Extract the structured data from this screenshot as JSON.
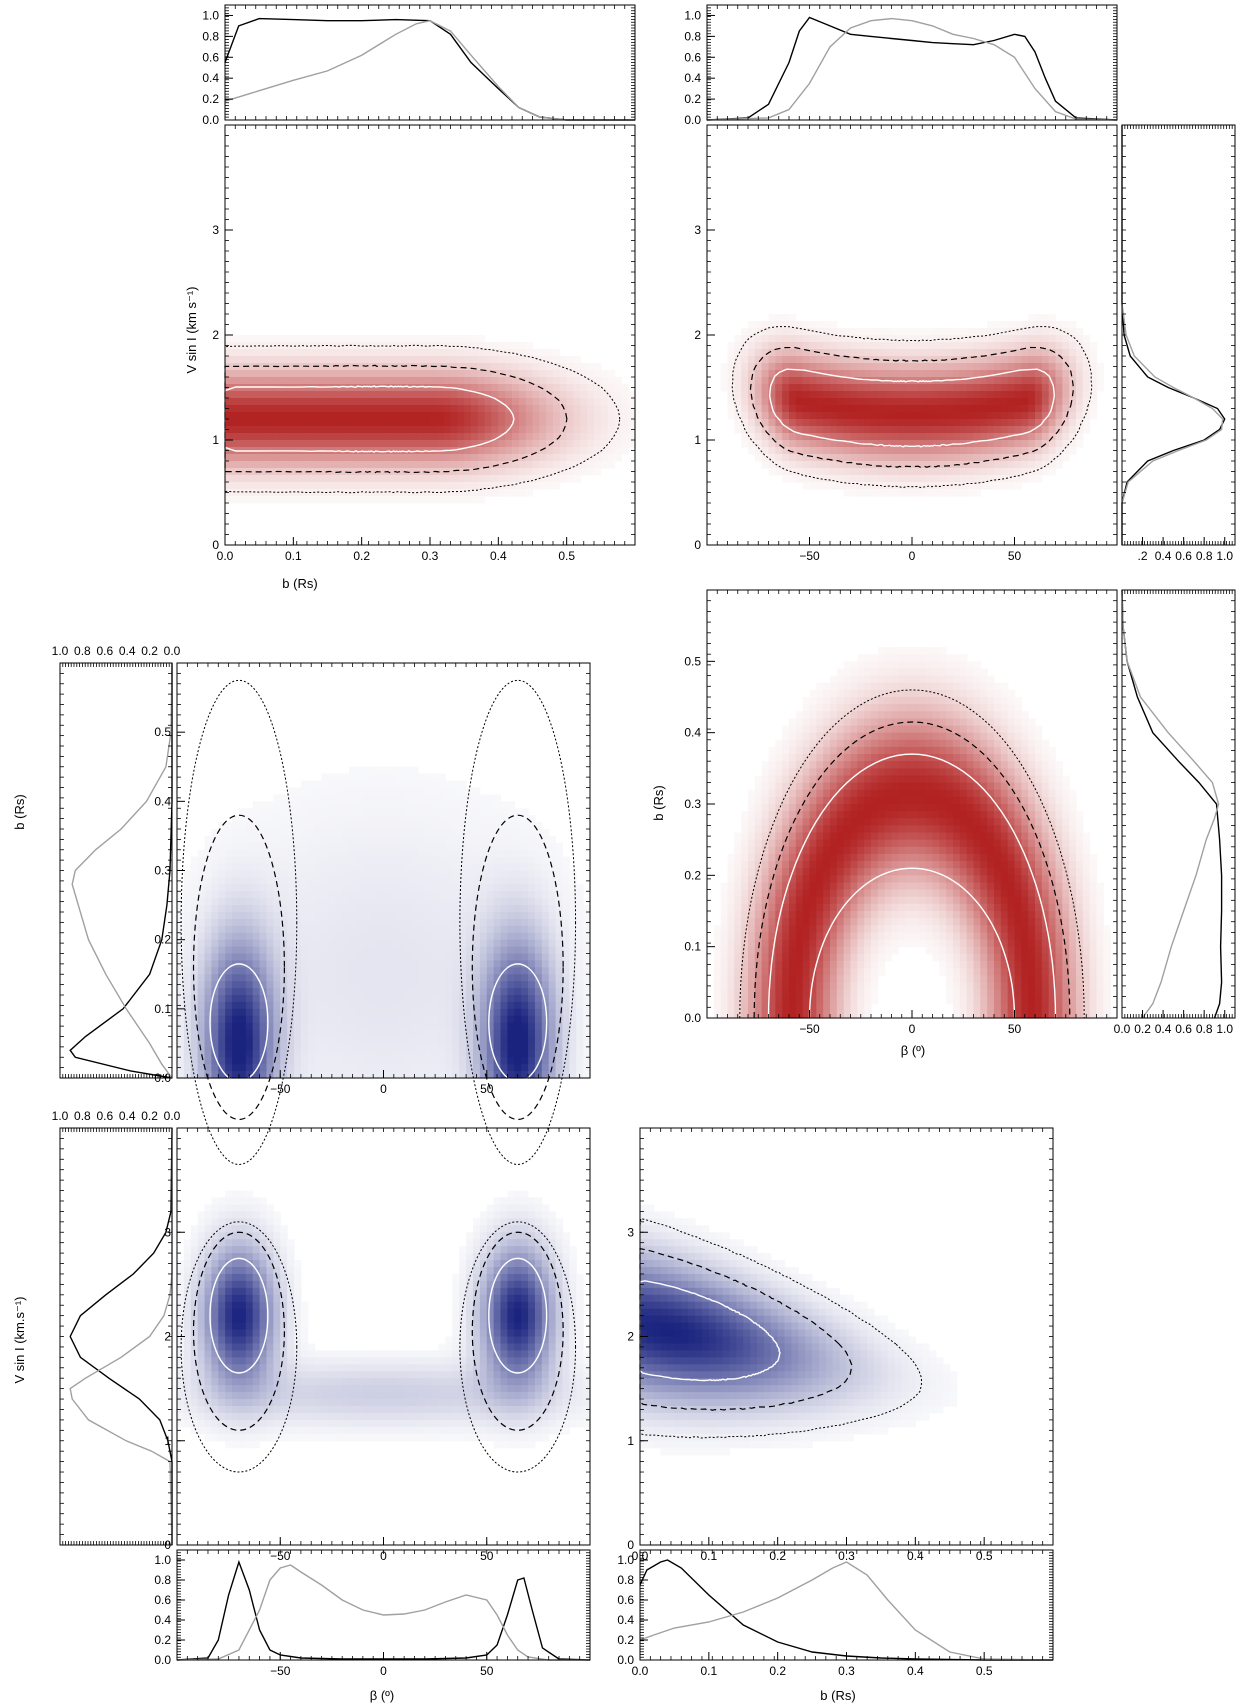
{
  "colors": {
    "red": "#b22222",
    "blue": "#1a237e",
    "hist_primary": "#000000",
    "hist_secondary": "#a0a0a0",
    "contour_inner": "#ffffff",
    "contour_mid": "#000000",
    "contour_outer": "#000000"
  },
  "labels": {
    "b_rs": "b (Rs)",
    "beta": "β (º)",
    "vsini_1": "V sin I (km s⁻¹)",
    "vsini_2": "V sin I (km.s⁻¹)"
  },
  "chart_data": [
    {
      "id": "p1",
      "type": "heatmap",
      "color": "red",
      "xlabel": "b (Rs)",
      "ylabel": "V sin I (km s⁻¹)",
      "xlim": [
        0,
        0.6
      ],
      "ylim": [
        0,
        4
      ],
      "xticks": [
        "0.0",
        "0.1",
        "0.2",
        "0.3",
        "0.4",
        "0.5"
      ],
      "yticks": [
        "0",
        "1",
        "2",
        "3"
      ],
      "density": {
        "shape": "band",
        "x_range": [
          0,
          0.4
        ],
        "y_center": 1.2,
        "y_halfwidth": 0.3
      }
    },
    {
      "id": "p2",
      "type": "heatmap",
      "color": "red",
      "xlabel": "",
      "ylabel": "",
      "xlim": [
        -100,
        100
      ],
      "ylim": [
        0,
        4
      ],
      "xticks": [
        "−50",
        "0",
        "50"
      ],
      "yticks": [
        "0",
        "1",
        "2",
        "3"
      ],
      "density": {
        "shape": "smile",
        "x_range": [
          -70,
          70
        ],
        "y_center": 1.25,
        "y_halfwidth": 0.3
      }
    },
    {
      "id": "p3",
      "type": "heatmap",
      "color": "blue",
      "xlabel": "",
      "ylabel": "b (Rs)",
      "xlim": [
        -100,
        100
      ],
      "ylim": [
        0,
        0.6
      ],
      "xticks": [
        "−50",
        "0",
        "50"
      ],
      "yticks": [
        "0.0",
        "0.1",
        "0.2",
        "0.3",
        "0.4",
        "0.5"
      ],
      "density": {
        "shape": "twin-peaks",
        "peaks_x": [
          -70,
          65
        ],
        "peak_y": 0.05
      }
    },
    {
      "id": "p4",
      "type": "heatmap",
      "color": "red",
      "xlabel": "β (º)",
      "ylabel": "b (Rs)",
      "xlim": [
        -100,
        100
      ],
      "ylim": [
        0,
        0.6
      ],
      "xticks": [
        "−50",
        "0",
        "50"
      ],
      "yticks": [
        "0.0",
        "0.1",
        "0.2",
        "0.3",
        "0.4",
        "0.5"
      ],
      "density": {
        "shape": "arch",
        "x_range": [
          -70,
          70
        ],
        "top_y": 0.37
      }
    },
    {
      "id": "p5",
      "type": "heatmap",
      "color": "blue",
      "xlabel": "",
      "ylabel": "V sin I (km.s⁻¹)",
      "xlim": [
        -100,
        100
      ],
      "ylim": [
        0,
        4
      ],
      "xticks": [
        "−50",
        "0",
        "50"
      ],
      "yticks": [
        "0",
        "1",
        "2",
        "3"
      ],
      "density": {
        "shape": "u-peaks",
        "peaks_x": [
          -70,
          65
        ],
        "peak_y": 2.2
      }
    },
    {
      "id": "p6",
      "type": "heatmap",
      "color": "blue",
      "xlabel": "",
      "ylabel": "",
      "xlim": [
        0,
        0.6
      ],
      "ylim": [
        0,
        4
      ],
      "xticks": [
        "0.0",
        "0.1",
        "0.2",
        "0.3",
        "0.4",
        "0.5"
      ],
      "yticks": [
        "0",
        "1",
        "2",
        "3"
      ],
      "density": {
        "shape": "wedge",
        "peak": [
          0.04,
          2.1
        ]
      }
    },
    {
      "id": "h_top_b",
      "type": "line",
      "orientation": "top",
      "xlim": [
        0,
        0.6
      ],
      "ylim": [
        0,
        1.1
      ],
      "yticks": [
        "0.0",
        "0.2",
        "0.4",
        "0.6",
        "0.8",
        "1.0"
      ],
      "series": [
        {
          "style": "primary",
          "x": [
            0,
            0.02,
            0.05,
            0.1,
            0.15,
            0.2,
            0.25,
            0.3,
            0.33,
            0.36,
            0.4,
            0.43,
            0.46,
            0.5,
            0.6
          ],
          "y": [
            0.55,
            0.9,
            0.97,
            0.96,
            0.95,
            0.95,
            0.96,
            0.95,
            0.82,
            0.55,
            0.3,
            0.12,
            0.03,
            0.0,
            0.0
          ]
        },
        {
          "style": "secondary",
          "x": [
            0,
            0.05,
            0.1,
            0.15,
            0.2,
            0.25,
            0.28,
            0.3,
            0.33,
            0.36,
            0.4,
            0.43,
            0.46,
            0.5,
            0.6
          ],
          "y": [
            0.18,
            0.28,
            0.38,
            0.47,
            0.62,
            0.82,
            0.92,
            0.95,
            0.85,
            0.62,
            0.32,
            0.12,
            0.03,
            0.0,
            0.0
          ]
        }
      ]
    },
    {
      "id": "h_top_beta",
      "type": "line",
      "orientation": "top",
      "xlim": [
        -100,
        100
      ],
      "ylim": [
        0,
        1.1
      ],
      "yticks": [
        "0.0",
        "0.2",
        "0.4",
        "0.6",
        "0.8",
        "1.0"
      ],
      "series": [
        {
          "style": "primary",
          "x": [
            -100,
            -80,
            -70,
            -60,
            -55,
            -50,
            -40,
            -30,
            -20,
            -10,
            0,
            10,
            20,
            30,
            40,
            50,
            55,
            60,
            65,
            70,
            80,
            100
          ],
          "y": [
            0,
            0.02,
            0.15,
            0.55,
            0.85,
            0.98,
            0.9,
            0.82,
            0.8,
            0.78,
            0.76,
            0.74,
            0.73,
            0.72,
            0.76,
            0.82,
            0.8,
            0.65,
            0.4,
            0.18,
            0.02,
            0
          ]
        },
        {
          "style": "secondary",
          "x": [
            -100,
            -70,
            -60,
            -50,
            -40,
            -30,
            -20,
            -10,
            0,
            10,
            20,
            30,
            40,
            50,
            60,
            70,
            80,
            100
          ],
          "y": [
            0,
            0.02,
            0.1,
            0.35,
            0.7,
            0.88,
            0.95,
            0.97,
            0.95,
            0.9,
            0.82,
            0.78,
            0.72,
            0.6,
            0.3,
            0.08,
            0.01,
            0
          ]
        }
      ]
    },
    {
      "id": "h_right_vsini",
      "type": "line",
      "orientation": "right",
      "ylim": [
        0,
        4
      ],
      "xlim": [
        0,
        1.1
      ],
      "xticks": [
        ".2",
        "0.4",
        "0.6",
        "0.8",
        "1.0"
      ],
      "series": [
        {
          "style": "primary",
          "y": [
            0,
            0.4,
            0.6,
            0.8,
            0.9,
            1.0,
            1.1,
            1.2,
            1.3,
            1.4,
            1.5,
            1.6,
            1.8,
            2.0,
            2.3,
            4
          ],
          "x": [
            0,
            0.0,
            0.05,
            0.25,
            0.5,
            0.8,
            0.95,
            1.0,
            0.93,
            0.7,
            0.45,
            0.25,
            0.08,
            0.02,
            0,
            0
          ]
        },
        {
          "style": "secondary",
          "y": [
            0,
            0.4,
            0.6,
            0.8,
            0.9,
            1.0,
            1.1,
            1.2,
            1.3,
            1.4,
            1.5,
            1.6,
            1.8,
            2.0,
            2.3,
            4
          ],
          "x": [
            0,
            0.0,
            0.06,
            0.3,
            0.55,
            0.82,
            0.97,
            0.98,
            0.88,
            0.7,
            0.5,
            0.32,
            0.12,
            0.04,
            0,
            0
          ]
        }
      ]
    },
    {
      "id": "h_right_b",
      "type": "line",
      "orientation": "right",
      "ylim": [
        0,
        0.6
      ],
      "xlim": [
        0,
        1.1
      ],
      "xticks": [
        "0.0",
        "0.2",
        "0.4",
        "0.6",
        "0.8",
        "1.0"
      ],
      "series": [
        {
          "style": "primary",
          "y": [
            0,
            0.02,
            0.05,
            0.1,
            0.15,
            0.2,
            0.25,
            0.3,
            0.33,
            0.36,
            0.4,
            0.45,
            0.5,
            0.55,
            0.6
          ],
          "x": [
            0.9,
            0.95,
            0.97,
            0.96,
            0.97,
            0.97,
            0.95,
            0.92,
            0.75,
            0.55,
            0.3,
            0.15,
            0.05,
            0.01,
            0
          ]
        },
        {
          "style": "secondary",
          "y": [
            0,
            0.02,
            0.05,
            0.1,
            0.15,
            0.2,
            0.25,
            0.28,
            0.3,
            0.33,
            0.36,
            0.4,
            0.45,
            0.5,
            0.55,
            0.6
          ],
          "x": [
            0.2,
            0.3,
            0.38,
            0.48,
            0.6,
            0.72,
            0.82,
            0.9,
            0.94,
            0.88,
            0.7,
            0.45,
            0.18,
            0.05,
            0.01,
            0
          ]
        }
      ]
    },
    {
      "id": "h_left_b",
      "type": "line",
      "orientation": "left",
      "ylim": [
        0,
        0.6
      ],
      "xlim": [
        0,
        1.1
      ],
      "xticks": [
        "1.0",
        "0.8",
        "0.6",
        "0.4",
        "0.2",
        "0.0"
      ],
      "series": [
        {
          "style": "primary",
          "y": [
            0,
            0.01,
            0.03,
            0.04,
            0.06,
            0.1,
            0.15,
            0.2,
            0.25,
            0.3,
            0.35,
            0.4,
            0.5,
            0.6
          ],
          "x": [
            0,
            0.4,
            0.95,
            1.0,
            0.85,
            0.48,
            0.22,
            0.1,
            0.05,
            0.02,
            0.01,
            0.0,
            0,
            0
          ]
        },
        {
          "style": "secondary",
          "y": [
            0,
            0.02,
            0.05,
            0.1,
            0.15,
            0.2,
            0.25,
            0.28,
            0.3,
            0.33,
            0.36,
            0.4,
            0.45,
            0.5,
            0.6
          ],
          "x": [
            0.0,
            0.1,
            0.22,
            0.45,
            0.65,
            0.82,
            0.92,
            0.98,
            0.95,
            0.75,
            0.5,
            0.25,
            0.06,
            0.01,
            0
          ]
        }
      ]
    },
    {
      "id": "h_left_vsini",
      "type": "line",
      "orientation": "left",
      "ylim": [
        0,
        4
      ],
      "xlim": [
        0,
        1.1
      ],
      "xticks": [
        "1.0",
        "0.8",
        "0.6",
        "0.4",
        "0.2",
        "0.0"
      ],
      "series": [
        {
          "style": "primary",
          "y": [
            0,
            0.8,
            1.0,
            1.2,
            1.4,
            1.6,
            1.8,
            2.0,
            2.2,
            2.4,
            2.6,
            2.8,
            3.0,
            3.2,
            4
          ],
          "x": [
            0,
            0.0,
            0.04,
            0.12,
            0.32,
            0.62,
            0.9,
            1.0,
            0.9,
            0.65,
            0.38,
            0.18,
            0.06,
            0.01,
            0
          ]
        },
        {
          "style": "secondary",
          "y": [
            0,
            0.8,
            0.9,
            1.0,
            1.2,
            1.4,
            1.5,
            1.6,
            1.8,
            2.0,
            2.2,
            2.4,
            2.6,
            3.0,
            4
          ],
          "x": [
            0,
            0.02,
            0.2,
            0.45,
            0.82,
            0.98,
            1.0,
            0.85,
            0.5,
            0.22,
            0.08,
            0.02,
            0.0,
            0,
            0
          ]
        }
      ]
    },
    {
      "id": "h_bottom_beta",
      "type": "line",
      "orientation": "bottom",
      "xlim": [
        -100,
        100
      ],
      "ylim": [
        0,
        1.1
      ],
      "xlabel": "β (º)",
      "xticks": [
        "−50",
        "0",
        "50"
      ],
      "yticks": [
        "0.0",
        "0.2",
        "0.4",
        "0.6",
        "0.8",
        "1.0"
      ],
      "series": [
        {
          "style": "primary",
          "x": [
            -100,
            -85,
            -80,
            -75,
            -70,
            -65,
            -60,
            -55,
            -50,
            -40,
            -20,
            0,
            20,
            40,
            50,
            55,
            60,
            65,
            68,
            72,
            77,
            85,
            100
          ],
          "y": [
            0,
            0.02,
            0.2,
            0.65,
            0.98,
            0.7,
            0.3,
            0.1,
            0.05,
            0.02,
            0.01,
            0.01,
            0.01,
            0.02,
            0.05,
            0.15,
            0.45,
            0.8,
            0.82,
            0.5,
            0.12,
            0.01,
            0
          ]
        },
        {
          "style": "secondary",
          "x": [
            -100,
            -80,
            -70,
            -60,
            -55,
            -50,
            -45,
            -40,
            -30,
            -20,
            -10,
            0,
            10,
            20,
            30,
            40,
            50,
            55,
            60,
            65,
            70,
            80,
            100
          ],
          "y": [
            0,
            0.01,
            0.1,
            0.5,
            0.8,
            0.92,
            0.95,
            0.88,
            0.75,
            0.6,
            0.5,
            0.45,
            0.46,
            0.5,
            0.58,
            0.65,
            0.6,
            0.45,
            0.25,
            0.1,
            0.03,
            0,
            0
          ]
        }
      ]
    },
    {
      "id": "h_bottom_b",
      "type": "line",
      "orientation": "bottom",
      "xlim": [
        0,
        0.6
      ],
      "ylim": [
        0,
        1.1
      ],
      "xlabel": "b (Rs)",
      "xticks": [
        "0.0",
        "0.1",
        "0.2",
        "0.3",
        "0.4",
        "0.5"
      ],
      "yticks": [
        "0.0",
        "0.2",
        "0.4",
        "0.6",
        "0.8",
        "1.0"
      ],
      "series": [
        {
          "style": "primary",
          "x": [
            0,
            0.01,
            0.03,
            0.04,
            0.06,
            0.1,
            0.15,
            0.2,
            0.25,
            0.3,
            0.35,
            0.4,
            0.5,
            0.6
          ],
          "y": [
            0.75,
            0.9,
            0.98,
            1.0,
            0.92,
            0.65,
            0.35,
            0.18,
            0.08,
            0.04,
            0.02,
            0.01,
            0,
            0
          ]
        },
        {
          "style": "secondary",
          "x": [
            0,
            0.02,
            0.05,
            0.1,
            0.15,
            0.2,
            0.25,
            0.28,
            0.3,
            0.33,
            0.36,
            0.4,
            0.45,
            0.5,
            0.6
          ],
          "y": [
            0.2,
            0.25,
            0.32,
            0.38,
            0.48,
            0.62,
            0.8,
            0.92,
            0.98,
            0.85,
            0.6,
            0.3,
            0.08,
            0.01,
            0
          ]
        }
      ]
    }
  ]
}
